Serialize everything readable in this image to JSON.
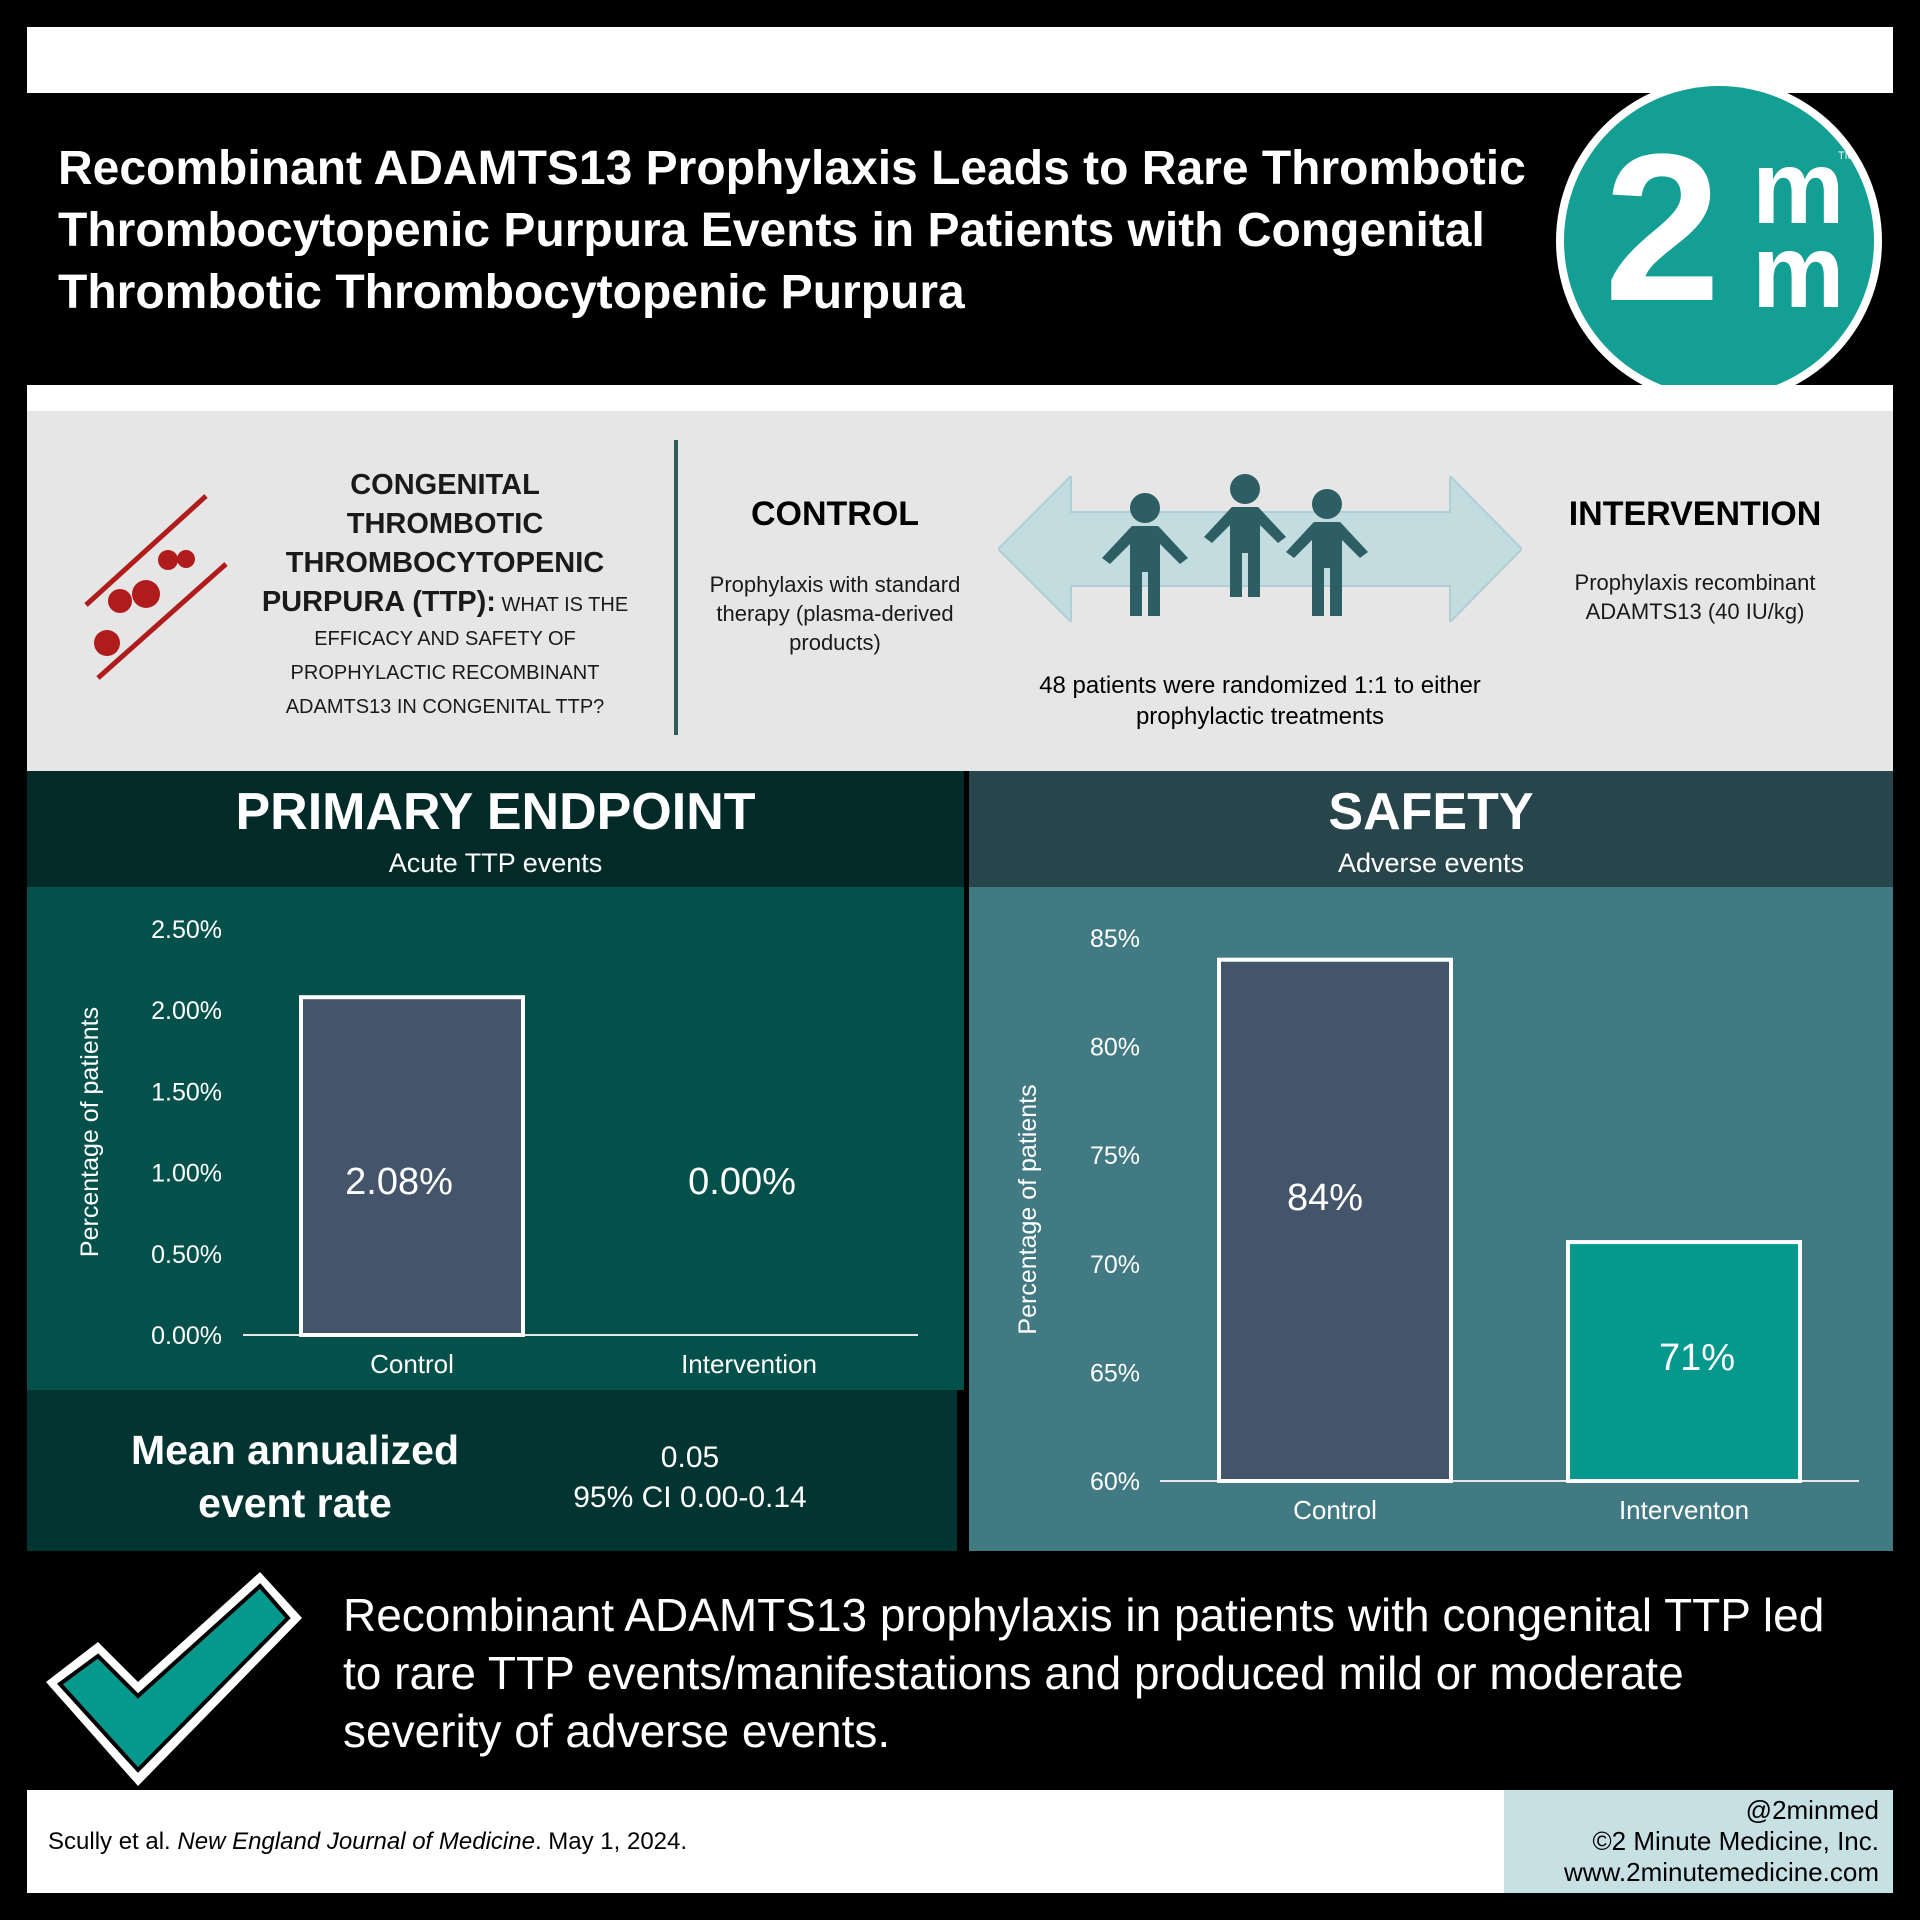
{
  "header": {
    "title": "Recombinant ADAMTS13 Prophylaxis Leads to Rare Thrombotic Thrombocytopenic Purpura Events in Patients with Congenital Thrombotic Thrombocytopenic Purpura",
    "logo_number": "2",
    "logo_letter": "m",
    "logo_tm": "TM"
  },
  "study": {
    "question_topic": "CONGENITAL THROMBOTIC THROMBOCYTOPENIC PURPURA (TTP):",
    "question_text": "WHAT IS THE EFFICACY AND SAFETY OF PROPHYLACTIC RECOMBINANT ADAMTS13 IN CONGENITAL TTP?",
    "control_heading": "CONTROL",
    "control_description": "Prophylaxis with standard therapy (plasma-derived products)",
    "intervention_heading": "INTERVENTION",
    "intervention_description": "Prophylaxis recombinant ADAMTS13 (40 IU/kg)",
    "randomization": "48 patients were randomized 1:1 to either prophylactic treatments"
  },
  "primary": {
    "heading": "PRIMARY ENDPOINT",
    "subheading": "Acute TTP events",
    "rate_label": "Mean annualized event rate",
    "rate_value": "0.05",
    "rate_ci": "95% CI 0.00-0.14"
  },
  "safety": {
    "heading": "SAFETY",
    "subheading": "Adverse events"
  },
  "conclusion": "Recombinant ADAMTS13 prophylaxis in patients with congenital TTP led to rare TTP events/manifestations and produced mild or moderate severity of adverse events.",
  "footer": {
    "citation_authors": "Scully et al. ",
    "citation_journal": "New England Journal of Medicine",
    "citation_date": ". May 1, 2024.",
    "handle": "@2minmed",
    "copyright": "©2 Minute Medicine, Inc.",
    "website": "www.2minutemedicine.com"
  },
  "colors": {
    "teal": "#139f94",
    "control_bar": "#44546a",
    "intervention_bar": "#05998d",
    "dark_teal": "#04514b",
    "icon_teal": "#2d5e63",
    "arrow": "#c3dce0",
    "blood_red": "#b01c1c"
  },
  "icons": [
    "blood-vessel-icon",
    "people-icon",
    "double-arrow-icon",
    "checkmark-icon"
  ],
  "chart_data": [
    {
      "type": "bar",
      "categories": [
        "Control",
        "Intervention"
      ],
      "values": [
        2.08,
        0.0
      ],
      "data_labels": [
        "2.08%",
        "0.00%"
      ],
      "ylabel": "Percentage of patients",
      "ylim": [
        0,
        2.5
      ],
      "yticks": [
        "0.00%",
        "0.50%",
        "1.00%",
        "1.50%",
        "2.00%",
        "2.50%"
      ],
      "grid": false
    },
    {
      "type": "bar",
      "categories": [
        "Control",
        "Interventon"
      ],
      "values": [
        84,
        71
      ],
      "data_labels": [
        "84%",
        "71%"
      ],
      "ylabel": "Percentage of patients",
      "ylim": [
        60,
        85
      ],
      "yticks": [
        "60%",
        "65%",
        "70%",
        "75%",
        "80%",
        "85%"
      ],
      "grid": false
    }
  ]
}
